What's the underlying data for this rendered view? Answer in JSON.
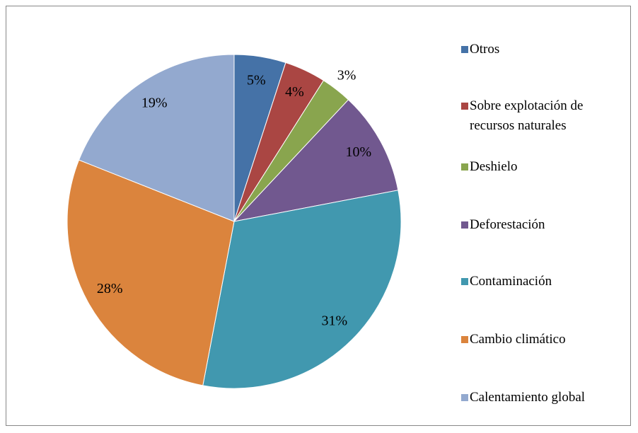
{
  "chart_data": {
    "type": "pie",
    "categories": [
      "Otros",
      "Sobre explotación de recursos naturales",
      "Deshielo",
      "Deforestación",
      "Contaminación",
      "Cambio climático",
      "Calentamiento global"
    ],
    "values": [
      5,
      4,
      3,
      10,
      31,
      28,
      19
    ],
    "value_labels": [
      "5%",
      "4%",
      "3%",
      "10%",
      "31%",
      "28%",
      "19%"
    ],
    "colors": [
      "#4572a7",
      "#aa4643",
      "#89a54e",
      "#71588f",
      "#4198af",
      "#db843d",
      "#93a9cf"
    ],
    "legend": "right"
  }
}
